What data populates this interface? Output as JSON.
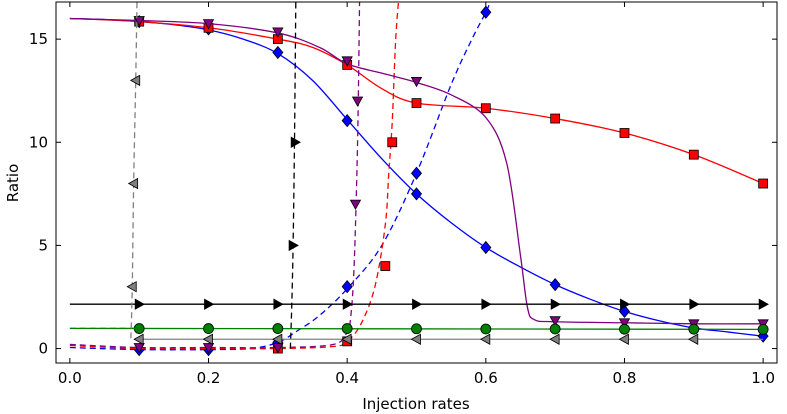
{
  "chart_data": {
    "type": "line",
    "title": "",
    "xlabel": "Injection rates",
    "ylabel": "Ratio",
    "xlim": [
      -0.02,
      1.02
    ],
    "ylim": [
      -0.7,
      16.8
    ],
    "xticks": [
      0.0,
      0.2,
      0.4,
      0.6,
      0.8,
      1.0
    ],
    "xtick_labels": [
      "0.0",
      "0.2",
      "0.4",
      "0.6",
      "0.8",
      "1.0"
    ],
    "yticks": [
      0,
      5,
      10,
      15
    ],
    "ytick_labels": [
      "0",
      "5",
      "10",
      "15"
    ],
    "grid": false,
    "legend": "none",
    "series": [
      {
        "color": "#0000ff",
        "style": "solid",
        "marker": "diamond",
        "curve_x": [
          0.0,
          0.05,
          0.1,
          0.15,
          0.2,
          0.25,
          0.3,
          0.35,
          0.4,
          0.45,
          0.5,
          0.55,
          0.6,
          0.65,
          0.7,
          0.75,
          0.8,
          0.85,
          0.9,
          0.95,
          1.0
        ],
        "curve_y": [
          16.0,
          15.95,
          15.85,
          15.7,
          15.45,
          15.0,
          14.3,
          13.0,
          11.1,
          9.2,
          7.5,
          6.1,
          4.9,
          3.95,
          3.1,
          2.4,
          1.8,
          1.35,
          1.0,
          0.8,
          0.6
        ],
        "marker_x": [
          0.1,
          0.2,
          0.3,
          0.4,
          0.5,
          0.6,
          0.7,
          0.8,
          0.9,
          1.0
        ],
        "marker_y": [
          15.85,
          15.5,
          14.35,
          11.05,
          7.5,
          4.9,
          3.1,
          1.8,
          1.0,
          0.6
        ]
      },
      {
        "color": "#0000ff",
        "style": "dashed",
        "marker": "diamond",
        "curve_x": [
          0.0,
          0.1,
          0.2,
          0.26,
          0.3,
          0.33,
          0.36,
          0.4,
          0.45,
          0.5,
          0.55,
          0.58,
          0.6,
          0.605,
          0.61
        ],
        "curve_y": [
          0.05,
          -0.05,
          -0.05,
          0.0,
          0.3,
          0.9,
          1.6,
          2.9,
          5.0,
          8.5,
          12.8,
          15.0,
          16.3,
          16.7,
          17.2
        ],
        "marker_x": [
          0.1,
          0.2,
          0.3,
          0.4,
          0.5,
          0.6
        ],
        "marker_y": [
          -0.05,
          -0.05,
          0.3,
          3.0,
          8.5,
          16.3
        ]
      },
      {
        "color": "#ff0000",
        "style": "solid",
        "marker": "square",
        "curve_x": [
          0.0,
          0.1,
          0.2,
          0.3,
          0.35,
          0.4,
          0.45,
          0.5,
          0.6,
          0.7,
          0.8,
          0.9,
          1.0
        ],
        "curve_y": [
          16.0,
          15.85,
          15.55,
          15.0,
          14.6,
          13.75,
          12.6,
          11.9,
          11.65,
          11.15,
          10.45,
          9.4,
          8.0
        ],
        "marker_x": [
          0.1,
          0.2,
          0.3,
          0.4,
          0.5,
          0.6,
          0.7,
          0.8,
          0.9,
          1.0
        ],
        "marker_y": [
          15.85,
          15.55,
          15.0,
          13.75,
          11.9,
          11.65,
          11.15,
          10.45,
          9.4,
          8.0
        ]
      },
      {
        "color": "#ff0000",
        "style": "dashed",
        "marker": "square",
        "curve_x": [
          0.0,
          0.1,
          0.2,
          0.3,
          0.38,
          0.4,
          0.42,
          0.44,
          0.455,
          0.46,
          0.465,
          0.47,
          0.475
        ],
        "curve_y": [
          0.15,
          0.0,
          0.0,
          0.0,
          0.1,
          0.35,
          1.2,
          3.0,
          6.0,
          8.5,
          11.0,
          15.0,
          17.2
        ],
        "marker_x": [
          0.3,
          0.4,
          0.455,
          0.465
        ],
        "marker_y": [
          0.0,
          0.35,
          4.0,
          10.0
        ]
      },
      {
        "color": "#800080",
        "style": "solid",
        "marker": "triangle-down",
        "curve_x": [
          0.0,
          0.1,
          0.2,
          0.3,
          0.36,
          0.4,
          0.45,
          0.5,
          0.55,
          0.6,
          0.63,
          0.65,
          0.66,
          0.67,
          0.7,
          0.8,
          0.9,
          1.0
        ],
        "curve_y": [
          16.0,
          15.9,
          15.75,
          15.3,
          14.6,
          13.8,
          13.35,
          12.9,
          12.3,
          11.2,
          9.0,
          4.5,
          2.0,
          1.4,
          1.3,
          1.25,
          1.2,
          1.2
        ],
        "marker_x": [
          0.1,
          0.2,
          0.3,
          0.4,
          0.5,
          0.7,
          0.8,
          0.9,
          1.0
        ],
        "marker_y": [
          15.9,
          15.75,
          15.35,
          13.95,
          12.95,
          1.35,
          1.25,
          1.2,
          1.2
        ]
      },
      {
        "color": "#800080",
        "style": "dashed",
        "marker": "triangle-down",
        "curve_x": [
          0.0,
          0.1,
          0.2,
          0.3,
          0.38,
          0.4,
          0.405,
          0.41,
          0.415,
          0.418
        ],
        "curve_y": [
          0.2,
          0.05,
          0.05,
          0.05,
          0.2,
          0.8,
          1.5,
          4.0,
          10.0,
          17.2
        ],
        "marker_x": [
          0.1,
          0.2,
          0.3,
          0.412,
          0.415
        ],
        "marker_y": [
          0.05,
          0.05,
          0.05,
          7.0,
          12.0
        ]
      },
      {
        "color": "#000000",
        "style": "solid",
        "marker": "triangle-right",
        "curve_x": [
          0.0,
          1.0
        ],
        "curve_y": [
          2.15,
          2.15
        ],
        "marker_x": [
          0.1,
          0.2,
          0.3,
          0.4,
          0.5,
          0.6,
          0.7,
          0.8,
          0.9,
          1.0
        ],
        "marker_y": [
          2.15,
          2.15,
          2.15,
          2.15,
          2.15,
          2.15,
          2.15,
          2.15,
          2.15,
          2.15
        ]
      },
      {
        "color": "#000000",
        "style": "dashed",
        "marker": "triangle-right",
        "curve_x": [
          0.318,
          0.32,
          0.322,
          0.324,
          0.326
        ],
        "curve_y": [
          0.0,
          2.0,
          5.0,
          10.0,
          17.2
        ],
        "marker_x": [
          0.322,
          0.325
        ],
        "marker_y": [
          5.0,
          10.0
        ]
      },
      {
        "color": "#008000",
        "style": "solid",
        "marker": "circle",
        "curve_x": [
          0.0,
          1.0
        ],
        "curve_y": [
          0.98,
          0.93
        ],
        "marker_x": [
          0.1,
          0.2,
          0.3,
          0.4,
          0.5,
          0.6,
          0.7,
          0.8,
          0.9,
          1.0
        ],
        "marker_y": [
          0.97,
          0.97,
          0.97,
          0.97,
          0.96,
          0.95,
          0.95,
          0.94,
          0.94,
          0.93
        ]
      },
      {
        "color": "#008000",
        "style": "dashed",
        "marker": "circle",
        "curve_x": [
          0.0,
          0.1
        ],
        "curve_y": [
          0.98,
          0.98
        ],
        "marker_x": [],
        "marker_y": []
      },
      {
        "color": "#808080",
        "style": "solid",
        "marker": "triangle-left",
        "curve_x": [
          0.1,
          1.0
        ],
        "curve_y": [
          0.45,
          0.45
        ],
        "marker_x": [
          0.1,
          0.2,
          0.3,
          0.4,
          0.5,
          0.6,
          0.7,
          0.8,
          0.9
        ],
        "marker_y": [
          0.45,
          0.45,
          0.45,
          0.45,
          0.45,
          0.45,
          0.45,
          0.45,
          0.45
        ]
      },
      {
        "color": "#808080",
        "style": "dashed",
        "marker": "triangle-left",
        "curve_x": [
          0.088,
          0.09,
          0.092,
          0.095,
          0.097
        ],
        "curve_y": [
          0.5,
          3.0,
          8.0,
          13.0,
          17.2
        ],
        "marker_x": [
          0.09,
          0.092,
          0.095
        ],
        "marker_y": [
          3.0,
          8.0,
          13.0
        ]
      }
    ]
  }
}
